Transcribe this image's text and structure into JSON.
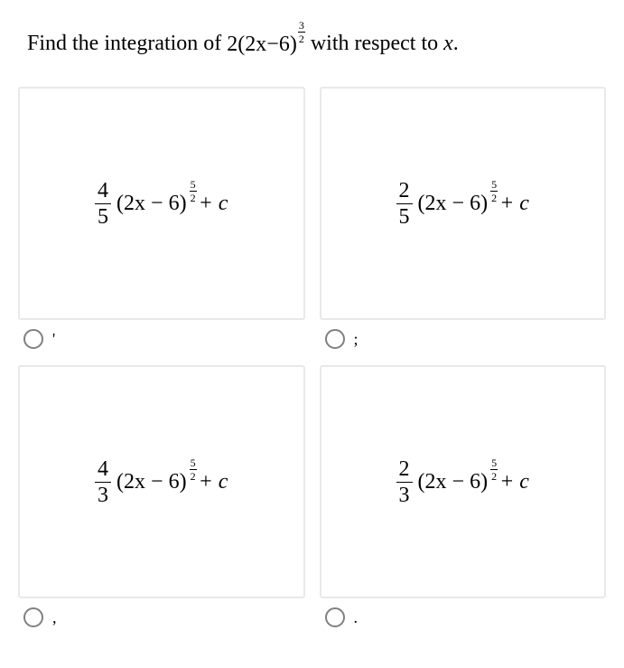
{
  "question": {
    "prefix": "Find the integration of ",
    "math_coef": "2",
    "math_inner": "(2x−6)",
    "math_exp_num": "3",
    "math_exp_den": "2",
    "suffix": " with respect to ",
    "var": "x",
    "period": "."
  },
  "options": [
    {
      "coef_num": "4",
      "coef_den": "5",
      "inner": "(2x − 6)",
      "exp_num": "5",
      "exp_den": "2",
      "tail": " + c",
      "label": "'"
    },
    {
      "coef_num": "2",
      "coef_den": "5",
      "inner": "(2x − 6)",
      "exp_num": "5",
      "exp_den": "2",
      "tail": " + c",
      "label": ";"
    },
    {
      "coef_num": "4",
      "coef_den": "3",
      "inner": "(2x − 6)",
      "exp_num": "5",
      "exp_den": "2",
      "tail": " + c",
      "label": ","
    },
    {
      "coef_num": "2",
      "coef_den": "3",
      "inner": "(2x − 6)",
      "exp_num": "5",
      "exp_den": "2",
      "tail": " + c",
      "label": "."
    }
  ],
  "style": {
    "page_bg": "#ffffff",
    "text_color": "#000000",
    "box_border": "#e9e9e9",
    "radio_border": "#808080",
    "question_fontsize": 24,
    "option_fontsize": 24
  }
}
